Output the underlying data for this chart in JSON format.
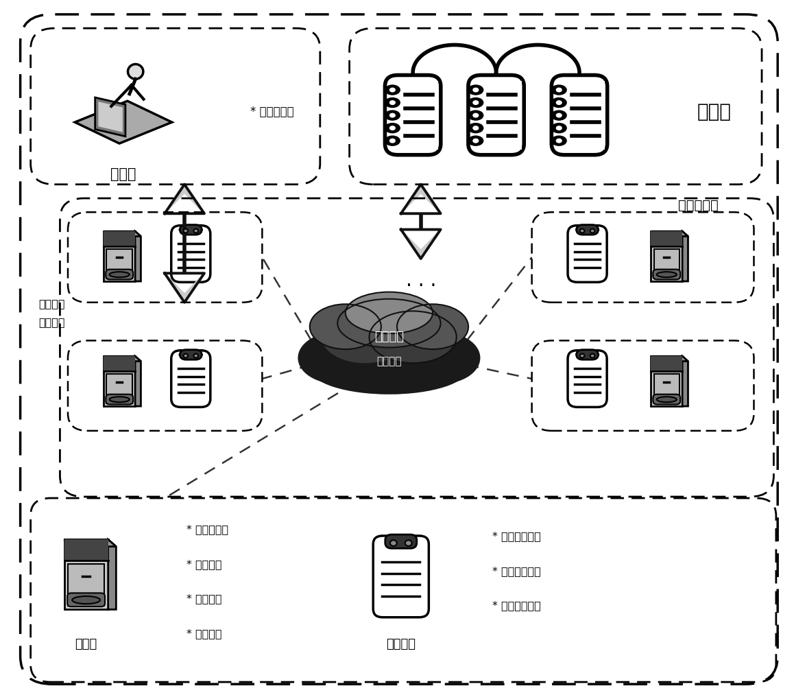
{
  "bg_color": "#ffffff",
  "fig_width": 11.58,
  "fig_height": 10.13,
  "dpi": 100,
  "text_auditor": "审计者",
  "text_integrity": "* 完整性审计",
  "text_blockchain": "区块链",
  "text_server_cluster": "服务器集群",
  "text_request": "请求进行\n日志审计",
  "text_cloud_line1": "高效多方",
  "text_cloud_line2": "计算协议",
  "text_server": "服务器",
  "text_storage": "存储模块",
  "text_server_items": [
    "* 日志序列化",
    "* 状态生成",
    "* 状态确认",
    "* 状态更新"
  ],
  "text_storage_items": [
    "* 日志缓存单元",
    "* 本地日志状态",
    "* 全局日志状态"
  ],
  "arrow_color": "#1a1a1a",
  "dash_color": "#111111",
  "cloud_dark": "#2a2a2a",
  "cloud_mid": "#555555",
  "cloud_light": "#888888"
}
